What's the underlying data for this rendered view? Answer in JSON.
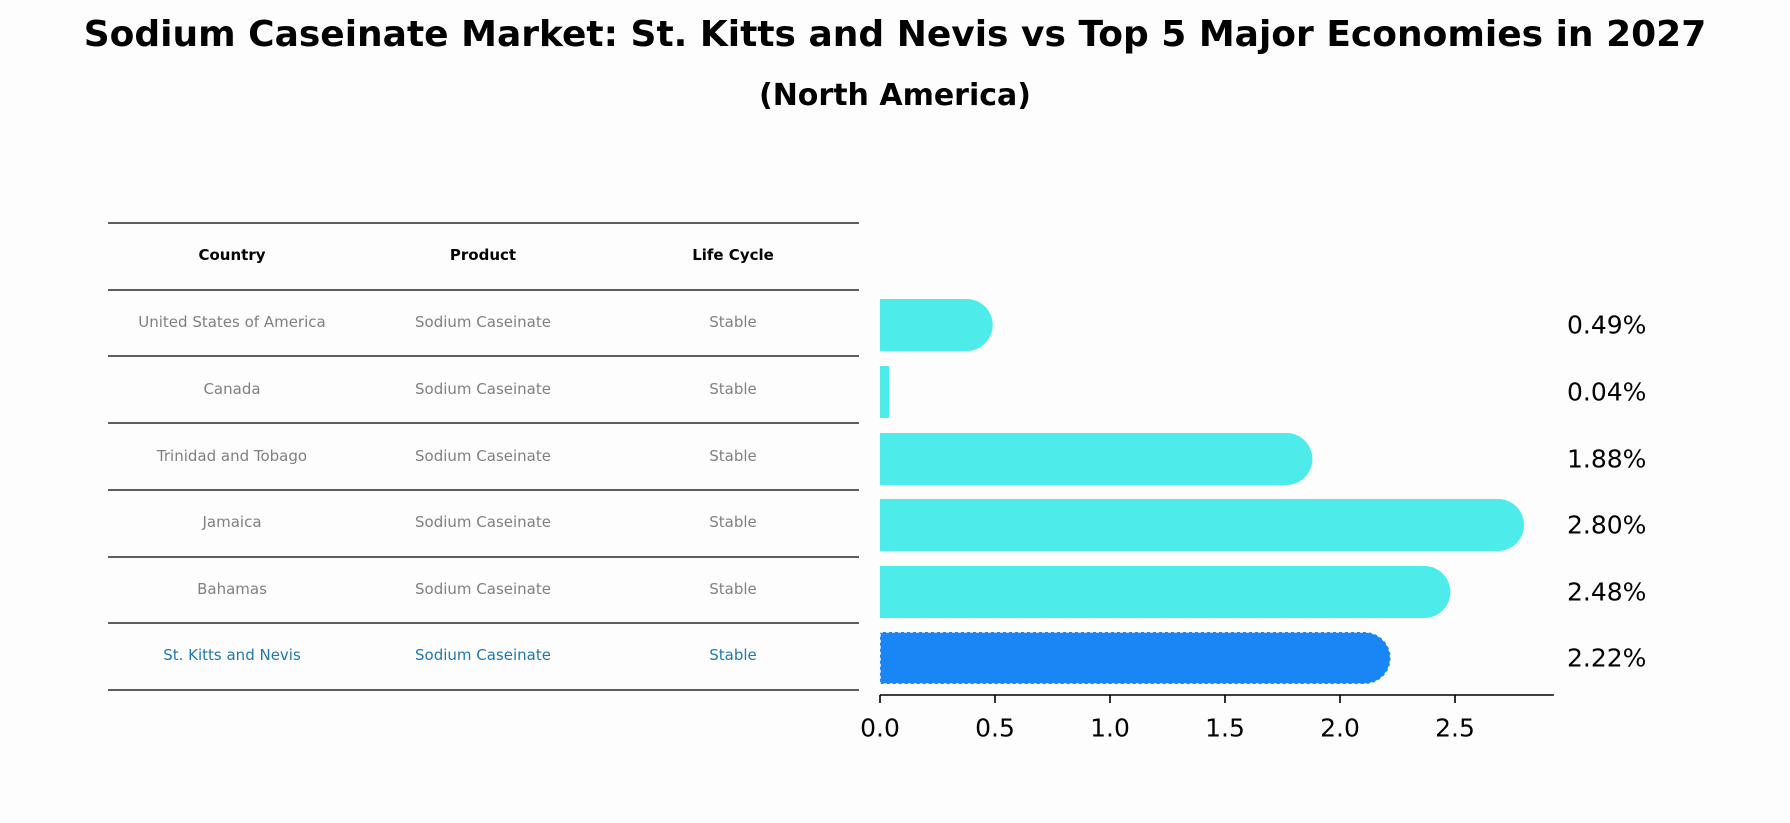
{
  "title": "Sodium Caseinate Market: St. Kitts and Nevis vs Top 5 Major Economies in 2027",
  "subtitle": "(North America)",
  "colors": {
    "bar": "#4deceb",
    "highlight_bar": "#1a86f5",
    "highlight_text": "#1f77b4",
    "muted_text": "#808080"
  },
  "table": {
    "headers": [
      "Country",
      "Product",
      "Life Cycle"
    ]
  },
  "chart_data": {
    "type": "bar",
    "orientation": "horizontal",
    "title": "Sodium Caseinate Market: St. Kitts and Nevis vs Top 5 Major Economies in 2027",
    "subtitle": "(North America)",
    "categories": [
      "United States of America",
      "Canada",
      "Trinidad and Tobago",
      "Jamaica",
      "Bahamas",
      "St. Kitts and Nevis"
    ],
    "product": [
      "Sodium Caseinate",
      "Sodium Caseinate",
      "Sodium Caseinate",
      "Sodium Caseinate",
      "Sodium Caseinate",
      "Sodium Caseinate"
    ],
    "life_cycle": [
      "Stable",
      "Stable",
      "Stable",
      "Stable",
      "Stable",
      "Stable"
    ],
    "values": [
      0.49,
      0.04,
      1.88,
      2.8,
      2.48,
      2.22
    ],
    "value_labels": [
      "0.49%",
      "0.04%",
      "1.88%",
      "2.80%",
      "2.48%",
      "2.22%"
    ],
    "highlight": "St. Kitts and Nevis",
    "xlim": [
      0,
      2.93
    ],
    "xticks": [
      0.0,
      0.5,
      1.0,
      1.5,
      2.0,
      2.5
    ],
    "xtick_labels": [
      "0.0",
      "0.5",
      "1.0",
      "1.5",
      "2.0",
      "2.5"
    ],
    "xlabel": "",
    "ylabel": "",
    "grid": false
  }
}
